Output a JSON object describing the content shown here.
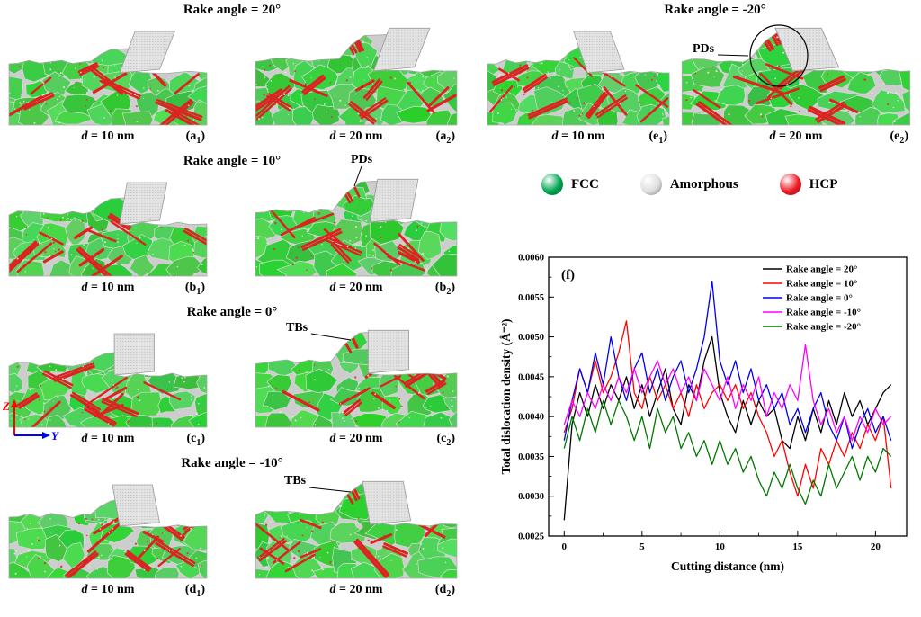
{
  "groups": [
    {
      "title": "Rake angle = 20°",
      "rake": 20,
      "panels": [
        {
          "caption_var": "d",
          "caption_rest": " = 10 nm",
          "tag_main": "(a",
          "tag_sub": "1",
          "tag_close": ")",
          "d": 10
        },
        {
          "caption_var": "d",
          "caption_rest": " = 20 nm",
          "tag_main": "(a",
          "tag_sub": "2",
          "tag_close": ")",
          "d": 20
        }
      ]
    },
    {
      "title": "Rake angle = 10°",
      "rake": 10,
      "panels": [
        {
          "caption_var": "d",
          "caption_rest": " = 10 nm",
          "tag_main": "(b",
          "tag_sub": "1",
          "tag_close": ")",
          "d": 10
        },
        {
          "caption_var": "d",
          "caption_rest": " = 20 nm",
          "tag_main": "(b",
          "tag_sub": "2",
          "tag_close": ")",
          "d": 20
        }
      ]
    },
    {
      "title": "Rake angle = 0°",
      "rake": 0,
      "panels": [
        {
          "caption_var": "d",
          "caption_rest": " = 10 nm",
          "tag_main": "(c",
          "tag_sub": "1",
          "tag_close": ")",
          "d": 10
        },
        {
          "caption_var": "d",
          "caption_rest": " = 20 nm",
          "tag_main": "(c",
          "tag_sub": "2",
          "tag_close": ")",
          "d": 20
        }
      ]
    },
    {
      "title": "Rake angle = -10°",
      "rake": -10,
      "panels": [
        {
          "caption_var": "d",
          "caption_rest": " = 10 nm",
          "tag_main": "(d",
          "tag_sub": "1",
          "tag_close": ")",
          "d": 10
        },
        {
          "caption_var": "d",
          "caption_rest": " = 20 nm",
          "tag_main": "(d",
          "tag_sub": "2",
          "tag_close": ")",
          "d": 20
        }
      ]
    },
    {
      "title": "Rake angle = -20°",
      "rake": -20,
      "panels": [
        {
          "caption_var": "d",
          "caption_rest": " = 10 nm",
          "tag_main": "(e",
          "tag_sub": "1",
          "tag_close": ")",
          "d": 10
        },
        {
          "caption_var": "d",
          "caption_rest": " = 20 nm",
          "tag_main": "(e",
          "tag_sub": "2",
          "tag_close": ")",
          "d": 20
        }
      ]
    }
  ],
  "annotations": [
    {
      "text": "PDs"
    },
    {
      "text": "TBs"
    },
    {
      "text": "TBs"
    },
    {
      "text": "PDs"
    }
  ],
  "axes_indicator": {
    "up": "Z",
    "right": "Y",
    "up_color": "#ff0000",
    "right_color": "#0000ff"
  },
  "phase_legend": [
    {
      "label": "FCC",
      "color": "#00a651"
    },
    {
      "label": "Amorphous",
      "color": "#dedede"
    },
    {
      "label": "HCP",
      "color": "#ee1c25"
    }
  ],
  "chart_data": {
    "type": "line",
    "panel_tag": "(f)",
    "xlabel": "Cutting distance (nm)",
    "ylabel": "Total dislocation density (Å⁻²)",
    "xlim": [
      -1,
      22
    ],
    "ylim": [
      0.0025,
      0.006
    ],
    "x_ticks": [
      0,
      5,
      10,
      15,
      20
    ],
    "y_ticks": [
      0.0025,
      0.003,
      0.0035,
      0.004,
      0.0045,
      0.005,
      0.0055,
      0.006
    ],
    "grid": false,
    "legend_position": "top-right",
    "x_start": 0,
    "x_step": 0.5,
    "series": [
      {
        "name": "Rake angle = 20°",
        "color": "#000000",
        "values": [
          0.0027,
          0.0039,
          0.0043,
          0.004,
          0.0044,
          0.0041,
          0.0044,
          0.0042,
          0.0045,
          0.0041,
          0.0044,
          0.004,
          0.0043,
          0.0046,
          0.0041,
          0.0039,
          0.0044,
          0.0042,
          0.0047,
          0.005,
          0.0043,
          0.004,
          0.0038,
          0.0042,
          0.0039,
          0.0042,
          0.004,
          0.0041,
          0.0037,
          0.0036,
          0.004,
          0.0037,
          0.0041,
          0.0038,
          0.0042,
          0.0039,
          0.0043,
          0.004,
          0.0042,
          0.0039,
          0.0041,
          0.0043,
          0.0044
        ]
      },
      {
        "name": "Rake angle = 10°",
        "color": "#ff0000",
        "values": [
          0.0038,
          0.0041,
          0.0046,
          0.0043,
          0.0047,
          0.0043,
          0.0045,
          0.0048,
          0.0052,
          0.0043,
          0.0041,
          0.0045,
          0.0042,
          0.0044,
          0.0041,
          0.0043,
          0.004,
          0.0044,
          0.0041,
          0.0043,
          0.0044,
          0.0042,
          0.0044,
          0.0041,
          0.0043,
          0.004,
          0.0038,
          0.0035,
          0.0037,
          0.0033,
          0.003,
          0.0034,
          0.0031,
          0.0036,
          0.0034,
          0.0037,
          0.0035,
          0.0038,
          0.0036,
          0.0039,
          0.0037,
          0.004,
          0.0031
        ]
      },
      {
        "name": "Rake angle = 0°",
        "color": "#0000ee",
        "values": [
          0.0037,
          0.0042,
          0.0046,
          0.0043,
          0.0048,
          0.0044,
          0.005,
          0.0045,
          0.0042,
          0.0046,
          0.0048,
          0.0043,
          0.0046,
          0.0042,
          0.0045,
          0.0047,
          0.0043,
          0.0046,
          0.005,
          0.0057,
          0.0047,
          0.0044,
          0.0047,
          0.0043,
          0.0046,
          0.0042,
          0.0044,
          0.0041,
          0.0043,
          0.0039,
          0.0041,
          0.0038,
          0.0041,
          0.0043,
          0.0039,
          0.0037,
          0.004,
          0.0036,
          0.0039,
          0.0041,
          0.0038,
          0.004,
          0.0037
        ]
      },
      {
        "name": "Rake angle = -10°",
        "color": "#ff00ff",
        "values": [
          0.0039,
          0.0042,
          0.004,
          0.0043,
          0.0041,
          0.0044,
          0.0042,
          0.0045,
          0.0043,
          0.0046,
          0.0043,
          0.0045,
          0.0047,
          0.0044,
          0.0046,
          0.0043,
          0.0045,
          0.0042,
          0.0046,
          0.0044,
          0.0042,
          0.0045,
          0.0041,
          0.0044,
          0.0042,
          0.0045,
          0.004,
          0.0043,
          0.0041,
          0.0044,
          0.0042,
          0.0049,
          0.0042,
          0.0039,
          0.0041,
          0.0038,
          0.004,
          0.0037,
          0.004,
          0.0038,
          0.0041,
          0.0039,
          0.004
        ]
      },
      {
        "name": "Rake angle = -20°",
        "color": "#007700",
        "values": [
          0.0036,
          0.004,
          0.0037,
          0.0041,
          0.0038,
          0.0042,
          0.0039,
          0.0042,
          0.004,
          0.0037,
          0.004,
          0.0036,
          0.0041,
          0.0038,
          0.004,
          0.0036,
          0.0038,
          0.0035,
          0.0037,
          0.0034,
          0.0037,
          0.0034,
          0.0036,
          0.0033,
          0.0035,
          0.0032,
          0.003,
          0.0033,
          0.0031,
          0.0034,
          0.0031,
          0.0029,
          0.0032,
          0.003,
          0.0034,
          0.0031,
          0.0033,
          0.0035,
          0.0032,
          0.0035,
          0.0033,
          0.0036,
          0.0035
        ]
      }
    ]
  }
}
